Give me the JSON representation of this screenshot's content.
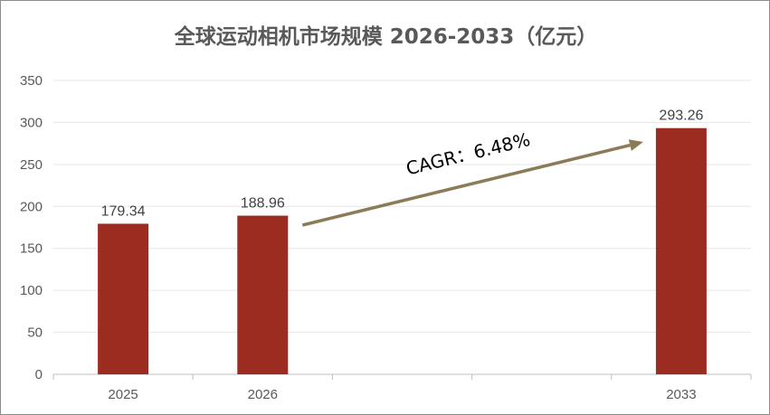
{
  "chart_data": {
    "type": "bar",
    "title": "全球运动相机市场规模 2026-2033（亿元）",
    "categories": [
      "2025",
      "2026",
      "",
      "",
      "2033"
    ],
    "values": [
      179.34,
      188.96,
      null,
      null,
      293.26
    ],
    "data_labels": [
      "179.34",
      "188.96",
      "",
      "",
      "293.26"
    ],
    "ylim": [
      0,
      350
    ],
    "yticks": [
      0,
      50,
      100,
      150,
      200,
      250,
      300,
      350
    ],
    "grid": true,
    "annotation": {
      "text": "CAGR：6.48%",
      "from_category": "2026",
      "to_category": "2033"
    },
    "colors": {
      "bar": "#9c2b20",
      "arrow": "#8b7b57",
      "grid": "#e6e6e6"
    }
  }
}
